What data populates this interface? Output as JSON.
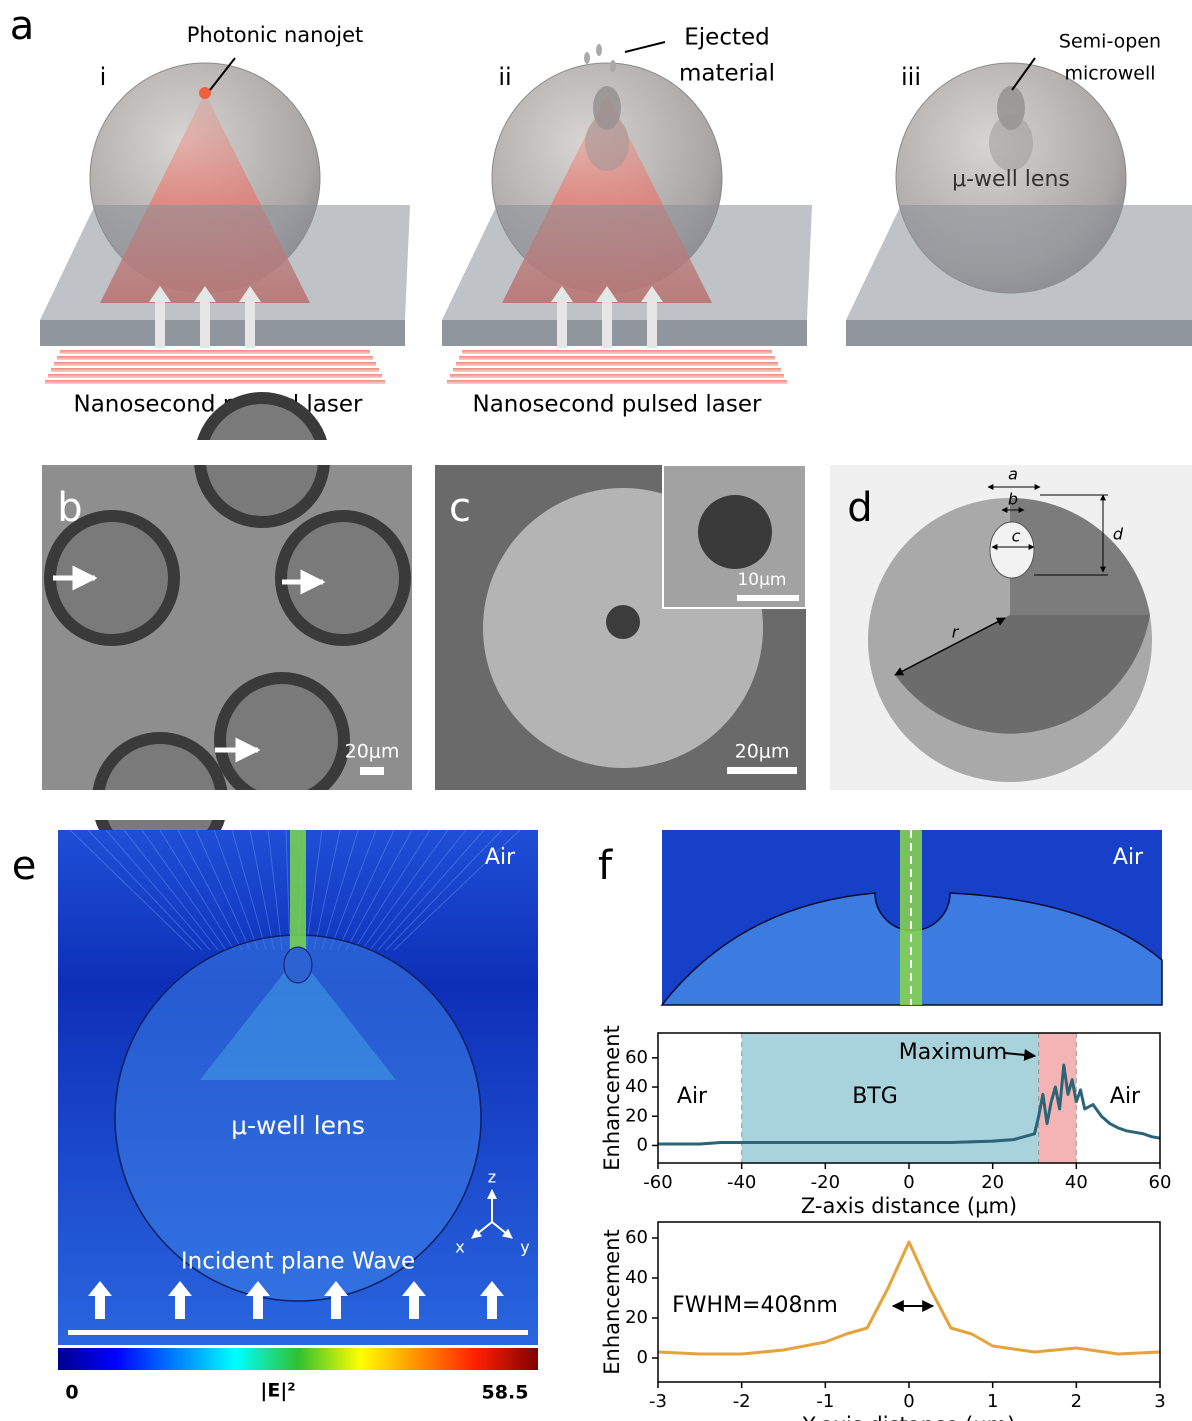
{
  "panel_a": {
    "label": "a",
    "scenes": [
      {
        "label": "i",
        "callout": [
          "Photonic nanojet"
        ],
        "caption": "Nanosecond pulsed laser"
      },
      {
        "label": "ii",
        "callout": [
          "Ejected",
          "material"
        ],
        "caption": "Nanosecond pulsed laser"
      },
      {
        "label": "iii",
        "callout": [
          "Semi-open",
          "microwell"
        ],
        "inner_label": "μ-well lens"
      }
    ]
  },
  "panel_b": {
    "label": "b",
    "scale_bar": "20μm"
  },
  "panel_c": {
    "label": "c",
    "inset_scale_bar": "10μm",
    "scale_bar": "20μm"
  },
  "panel_d": {
    "label": "d",
    "dims": [
      "a",
      "b",
      "c",
      "d",
      "r"
    ]
  },
  "panel_e": {
    "label": "e",
    "medium": "Air",
    "lens": "μ-well lens",
    "wave": "Incident plane Wave",
    "axes": [
      "z",
      "x",
      "y"
    ],
    "colorbar": {
      "min": 0,
      "quantity": "|E|²",
      "max": 58.5
    }
  },
  "panel_f": {
    "label": "f",
    "medium": "Air"
  },
  "chart_data": [
    {
      "type": "line",
      "x_label": "Z-axis distance (μm)",
      "y_label": "Enhancement",
      "x": [
        -60,
        -50,
        -45,
        -40,
        -30,
        -20,
        -10,
        0,
        10,
        20,
        25,
        30,
        31,
        32,
        33,
        34,
        35,
        36,
        37,
        38,
        39,
        40,
        41,
        42,
        44,
        46,
        48,
        50,
        52,
        54,
        56,
        58,
        60
      ],
      "series": [
        {
          "color": "#2a6476",
          "values": [
            1,
            1,
            2,
            2,
            2,
            2,
            2,
            2,
            2,
            3,
            4,
            8,
            20,
            35,
            15,
            30,
            40,
            25,
            55,
            35,
            45,
            30,
            38,
            25,
            28,
            20,
            15,
            12,
            10,
            9,
            8,
            6,
            5
          ]
        }
      ],
      "regions": [
        {
          "from": -40,
          "to": 31,
          "color": "#a9d3dc"
        },
        {
          "from": 31,
          "to": 40,
          "color": "#f4b4b4"
        }
      ],
      "annotations": [
        "Air",
        "BTG",
        "Maximum",
        "Air"
      ],
      "xlim": [
        -60,
        60
      ],
      "xticks": [
        -60,
        -40,
        -20,
        0,
        20,
        40,
        60
      ],
      "ylim": [
        -12,
        77
      ],
      "yticks": [
        0,
        20,
        40,
        60
      ]
    },
    {
      "type": "line",
      "x_label": "Y-axis distance (μm)",
      "y_label": "Enhancement",
      "x": [
        -3,
        -2.5,
        -2,
        -1.5,
        -1,
        -0.75,
        -0.5,
        -0.25,
        0,
        0.25,
        0.5,
        0.75,
        1,
        1.5,
        2,
        2.5,
        3
      ],
      "series": [
        {
          "color": "#e6a23c",
          "values": [
            3,
            2,
            2,
            4,
            8,
            12,
            15,
            35,
            58,
            35,
            15,
            12,
            6,
            3,
            5,
            2,
            3
          ]
        }
      ],
      "annotations": [
        "FWHM=408nm"
      ],
      "xlim": [
        -3,
        3
      ],
      "xticks": [
        -3,
        -2,
        -1,
        0,
        1,
        2,
        3
      ],
      "ylim": [
        -12,
        68
      ],
      "yticks": [
        0,
        20,
        40,
        60
      ]
    }
  ]
}
